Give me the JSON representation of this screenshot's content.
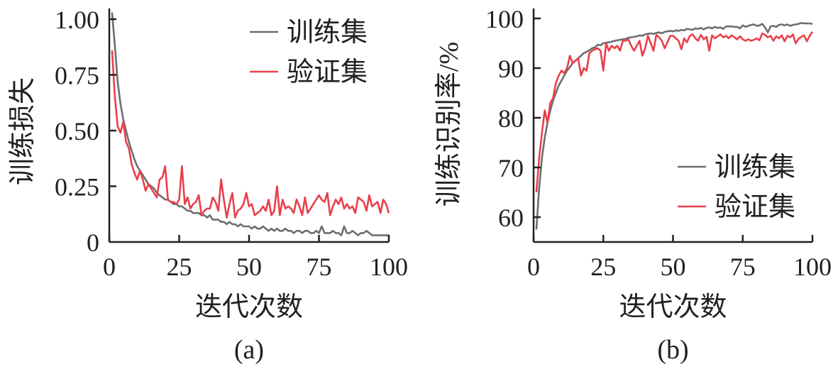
{
  "colors": {
    "train": "#6d6e71",
    "val": "#e8404b",
    "axis": "#231f20"
  },
  "chart_data": [
    {
      "type": "line",
      "caption": "(a)",
      "xlabel": "迭代次数",
      "ylabel": "训练损失",
      "xlim": [
        0,
        100
      ],
      "ylim": [
        0,
        1.05
      ],
      "xticks": [
        "0",
        "25",
        "50",
        "75",
        "100"
      ],
      "yticks": [
        "0",
        "0.25",
        "0.50",
        "0.75",
        "1.00"
      ],
      "legend_position": "top-right",
      "grid": false,
      "series": [
        {
          "name": "训练集",
          "color_key": "train",
          "values": [
            1.03,
            0.88,
            0.72,
            0.62,
            0.55,
            0.5,
            0.45,
            0.41,
            0.37,
            0.34,
            0.32,
            0.3,
            0.28,
            0.26,
            0.25,
            0.24,
            0.22,
            0.21,
            0.2,
            0.19,
            0.19,
            0.18,
            0.17,
            0.17,
            0.16,
            0.16,
            0.15,
            0.14,
            0.14,
            0.13,
            0.13,
            0.13,
            0.12,
            0.12,
            0.11,
            0.12,
            0.1,
            0.1,
            0.1,
            0.09,
            0.09,
            0.08,
            0.09,
            0.08,
            0.08,
            0.07,
            0.08,
            0.07,
            0.07,
            0.07,
            0.06,
            0.07,
            0.06,
            0.06,
            0.07,
            0.06,
            0.05,
            0.06,
            0.05,
            0.06,
            0.05,
            0.05,
            0.06,
            0.05,
            0.05,
            0.04,
            0.05,
            0.05,
            0.04,
            0.05,
            0.05,
            0.04,
            0.04,
            0.05,
            0.04,
            0.07,
            0.04,
            0.04,
            0.04,
            0.05,
            0.04,
            0.04,
            0.03,
            0.07,
            0.04,
            0.04,
            0.05,
            0.04,
            0.03,
            0.04,
            0.04,
            0.05,
            0.04,
            0.03,
            0.03,
            0.03,
            0.03,
            0.03,
            0.03,
            0.03
          ]
        },
        {
          "name": "验证集",
          "color_key": "val",
          "values": [
            0.86,
            0.65,
            0.52,
            0.49,
            0.54,
            0.45,
            0.42,
            0.35,
            0.31,
            0.28,
            0.32,
            0.28,
            0.23,
            0.26,
            0.24,
            0.22,
            0.2,
            0.28,
            0.29,
            0.34,
            0.19,
            0.18,
            0.18,
            0.17,
            0.19,
            0.34,
            0.17,
            0.2,
            0.15,
            0.17,
            0.18,
            0.21,
            0.12,
            0.14,
            0.15,
            0.15,
            0.2,
            0.18,
            0.14,
            0.28,
            0.19,
            0.11,
            0.17,
            0.22,
            0.11,
            0.14,
            0.15,
            0.17,
            0.22,
            0.16,
            0.17,
            0.12,
            0.13,
            0.14,
            0.16,
            0.14,
            0.19,
            0.12,
            0.14,
            0.25,
            0.12,
            0.19,
            0.15,
            0.16,
            0.15,
            0.13,
            0.19,
            0.16,
            0.12,
            0.2,
            0.13,
            0.15,
            0.17,
            0.19,
            0.21,
            0.19,
            0.18,
            0.22,
            0.12,
            0.16,
            0.19,
            0.17,
            0.2,
            0.15,
            0.17,
            0.15,
            0.16,
            0.13,
            0.2,
            0.19,
            0.18,
            0.14,
            0.21,
            0.16,
            0.17,
            0.18,
            0.13,
            0.19,
            0.17,
            0.13
          ]
        }
      ]
    },
    {
      "type": "line",
      "caption": "(b)",
      "xlabel": "迭代次数",
      "ylabel": "训练识别率/%",
      "xlim": [
        0,
        100
      ],
      "ylim": [
        55,
        101
      ],
      "xticks": [
        "0",
        "25",
        "50",
        "75",
        "100"
      ],
      "yticks": [
        "60",
        "70",
        "80",
        "90",
        "100"
      ],
      "legend_position": "bottom-right",
      "grid": false,
      "series": [
        {
          "name": "训练集",
          "color_key": "train",
          "values": [
            57.5,
            66,
            72,
            76,
            79,
            81.5,
            83.5,
            85,
            86.5,
            87.5,
            88.5,
            89.5,
            90.2,
            91,
            91.5,
            92,
            92.5,
            93,
            93.3,
            93.6,
            94,
            94.2,
            94.7,
            94.6,
            95,
            95.1,
            95.2,
            95.3,
            95.5,
            95.6,
            95.7,
            95.8,
            95.9,
            96.1,
            96.2,
            96.3,
            96.4,
            96.6,
            96.5,
            96.8,
            96.9,
            97.0,
            96.9,
            97.1,
            97.2,
            97.0,
            97.3,
            97.4,
            97.5,
            97.4,
            97.6,
            97.5,
            97.7,
            97.6,
            97.9,
            97.8,
            97.7,
            98.0,
            97.9,
            98.1,
            97.8,
            98.1,
            98.2,
            98.0,
            98.3,
            98.1,
            98.2,
            97.9,
            98.4,
            98.4,
            98.4,
            98.3,
            98.3,
            98.0,
            98.6,
            98.3,
            98.5,
            98.7,
            98.8,
            98.5,
            98.6,
            98.9,
            98.2,
            97.2,
            98.4,
            98.5,
            98.3,
            98.7,
            98.8,
            98.6,
            98.8,
            98.5,
            98.7,
            98.8,
            98.9,
            99.1,
            99.0,
            99.0,
            99.0,
            98.9
          ]
        },
        {
          "name": "验证集",
          "color_key": "val",
          "values": [
            65,
            72,
            77,
            81.5,
            79,
            83,
            84,
            87,
            88.5,
            89.5,
            89,
            90,
            92.5,
            91,
            91.5,
            92,
            88.5,
            90,
            89.5,
            93,
            93.5,
            93.8,
            94,
            93.5,
            89.5,
            95,
            93.5,
            94.5,
            94,
            94.5,
            93.5,
            95.5,
            95.5,
            95.8,
            94.5,
            93.5,
            94.5,
            95.5,
            92.5,
            94,
            96.5,
            95,
            93.5,
            96.7,
            96.2,
            95.5,
            94,
            95.2,
            96.5,
            96.5,
            96.0,
            95.5,
            93.8,
            96.0,
            95.2,
            96.5,
            96.8,
            96.0,
            95.5,
            96.7,
            95.8,
            96.3,
            93.5,
            96.6,
            96.0,
            96.4,
            96.8,
            96.2,
            96.5,
            96.0,
            96.6,
            96.2,
            95.8,
            96.4,
            95.8,
            95.5,
            95.8,
            95.5,
            95.7,
            96.0,
            95.6,
            97.0,
            96.7,
            96.2,
            96.5,
            95.5,
            96.4,
            96.0,
            96.6,
            95.4,
            96.5,
            96.2,
            96.8,
            95.0,
            95.9,
            96.3,
            96.6,
            95.4,
            96.5,
            97.3
          ]
        }
      ]
    }
  ]
}
